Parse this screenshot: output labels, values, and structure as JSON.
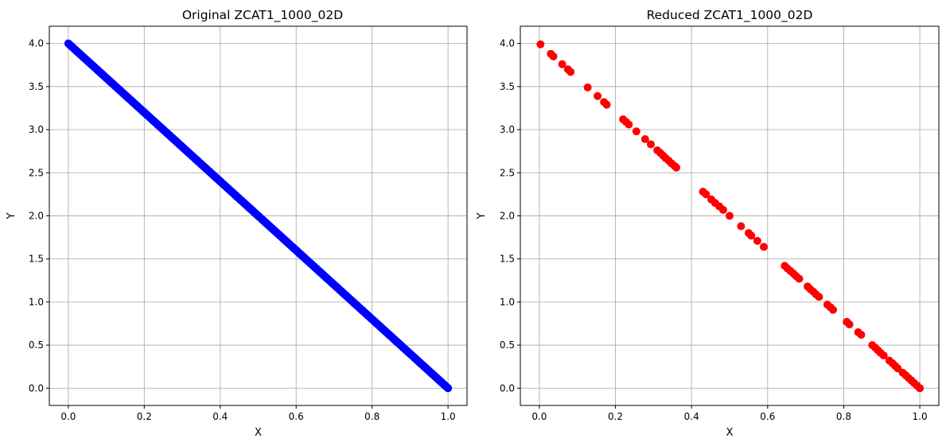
{
  "chart_data": [
    {
      "type": "scatter",
      "title": "Original ZCAT1_1000_02D",
      "xlabel": "X",
      "ylabel": "Y",
      "xlim": [
        -0.05,
        1.05
      ],
      "ylim": [
        -0.2,
        4.2
      ],
      "xticks": [
        0.0,
        0.2,
        0.4,
        0.6,
        0.8,
        1.0
      ],
      "xtick_labels": [
        "0.0",
        "0.2",
        "0.4",
        "0.6",
        "0.8",
        "1.0"
      ],
      "yticks": [
        0.0,
        0.5,
        1.0,
        1.5,
        2.0,
        2.5,
        3.0,
        3.5,
        4.0
      ],
      "ytick_labels": [
        "0.0",
        "0.5",
        "1.0",
        "1.5",
        "2.0",
        "2.5",
        "3.0",
        "3.5",
        "4.0"
      ],
      "grid": true,
      "color": "#0000ff",
      "series": [
        {
          "relation": "y = 4 - 4x",
          "x_range": [
            0.0,
            1.0
          ],
          "n_points": 1000
        }
      ]
    },
    {
      "type": "scatter",
      "title": "Reduced ZCAT1_1000_02D",
      "xlabel": "X",
      "ylabel": "Y",
      "xlim": [
        -0.05,
        1.05
      ],
      "ylim": [
        -0.2,
        4.2
      ],
      "xticks": [
        0.0,
        0.2,
        0.4,
        0.6,
        0.8,
        1.0
      ],
      "xtick_labels": [
        "0.0",
        "0.2",
        "0.4",
        "0.6",
        "0.8",
        "1.0"
      ],
      "yticks": [
        0.0,
        0.5,
        1.0,
        1.5,
        2.0,
        2.5,
        3.0,
        3.5,
        4.0
      ],
      "ytick_labels": [
        "0.0",
        "0.5",
        "1.0",
        "1.5",
        "2.0",
        "2.5",
        "3.0",
        "3.5",
        "4.0"
      ],
      "grid": true,
      "color": "#ff0000",
      "series": [
        {
          "x": [
            0.003,
            0.03,
            0.037,
            0.06,
            0.075,
            0.082,
            0.127,
            0.153,
            0.17,
            0.177,
            0.22,
            0.228,
            0.235,
            0.255,
            0.278,
            0.293,
            0.31,
            0.318,
            0.325,
            0.332,
            0.34,
            0.347,
            0.355,
            0.36,
            0.43,
            0.438,
            0.452,
            0.462,
            0.473,
            0.483,
            0.5,
            0.53,
            0.55,
            0.557,
            0.573,
            0.59,
            0.645,
            0.652,
            0.66,
            0.668,
            0.675,
            0.683,
            0.705,
            0.712,
            0.72,
            0.727,
            0.735,
            0.757,
            0.765,
            0.772,
            0.808,
            0.815,
            0.838,
            0.846,
            0.875,
            0.883,
            0.89,
            0.897,
            0.905,
            0.92,
            0.928,
            0.935,
            0.942,
            0.955,
            0.963,
            0.97,
            0.978,
            0.985,
            0.993,
            1.0
          ],
          "y": [
            3.99,
            3.88,
            3.85,
            3.76,
            3.7,
            3.67,
            3.49,
            3.39,
            3.32,
            3.29,
            3.12,
            3.09,
            3.06,
            2.98,
            2.89,
            2.83,
            2.76,
            2.73,
            2.7,
            2.67,
            2.64,
            2.61,
            2.58,
            2.56,
            2.28,
            2.25,
            2.19,
            2.15,
            2.11,
            2.07,
            2.0,
            1.88,
            1.8,
            1.77,
            1.71,
            1.64,
            1.42,
            1.39,
            1.36,
            1.33,
            1.3,
            1.27,
            1.18,
            1.15,
            1.12,
            1.09,
            1.06,
            0.97,
            0.94,
            0.91,
            0.77,
            0.74,
            0.65,
            0.62,
            0.5,
            0.47,
            0.44,
            0.41,
            0.38,
            0.32,
            0.29,
            0.26,
            0.23,
            0.18,
            0.15,
            0.12,
            0.09,
            0.06,
            0.03,
            0.0
          ]
        }
      ]
    }
  ]
}
